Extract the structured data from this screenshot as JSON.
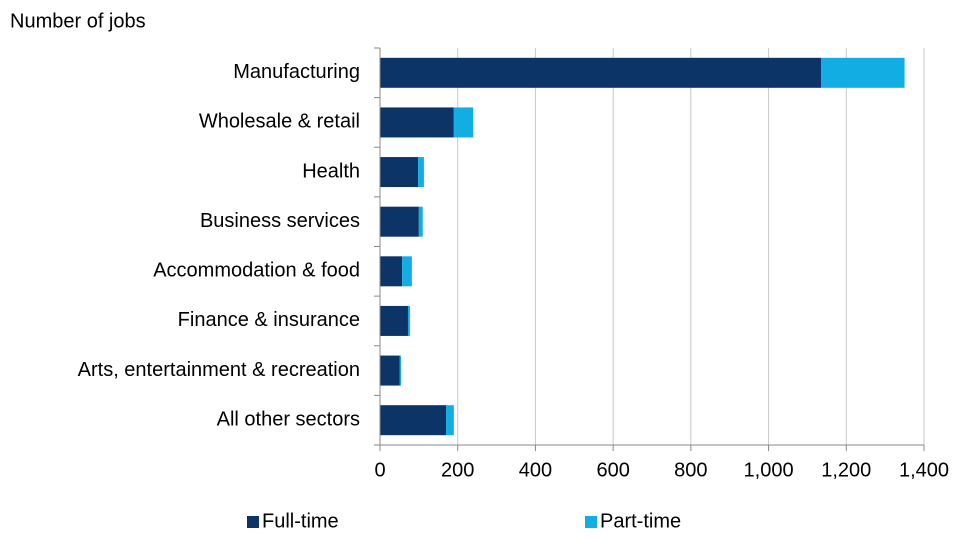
{
  "chart_data": {
    "type": "stacked_barh",
    "y_axis_title": "Number of jobs",
    "categories": [
      "Manufacturing",
      "Wholesale & retail",
      "Health",
      "Business services",
      "Accommodation & food",
      "Finance & insurance",
      "Arts, entertainment & recreation",
      "All other sectors"
    ],
    "series": [
      {
        "name": "Full-time",
        "color": "#0c3466",
        "values": [
          1135,
          190,
          98,
          100,
          57,
          72,
          51,
          170
        ]
      },
      {
        "name": "Part-time",
        "color": "#12ade2",
        "values": [
          215,
          50,
          15,
          10,
          25,
          5,
          3,
          20
        ]
      }
    ],
    "xlim": [
      0,
      1400
    ],
    "xticks": [
      0,
      200,
      400,
      600,
      800,
      {
        "value": 1000,
        "label": "1,000"
      },
      {
        "value": 1200,
        "label": "1,200"
      },
      {
        "value": 1400,
        "label": "1,400"
      }
    ],
    "grid": true,
    "legend": "bottom"
  }
}
